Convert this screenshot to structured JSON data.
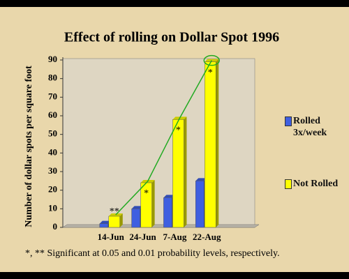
{
  "chart_data": {
    "type": "bar",
    "title": "Effect of rolling on Dollar Spot 1996",
    "y_label": "Number of  dollar spots  per square foot",
    "categories": [
      null,
      "14-Jun",
      "24-Jun",
      "7-Aug",
      "22-Aug",
      null
    ],
    "series": [
      {
        "name": "Rolled 3x/week",
        "color": "#3f5fe0",
        "values": [
          null,
          2,
          10,
          16,
          25,
          null
        ]
      },
      {
        "name": "Not Rolled",
        "color": "#ffff00",
        "values": [
          null,
          6,
          24,
          58,
          89,
          null
        ]
      }
    ],
    "significance": [
      null,
      "**",
      "*",
      "*",
      "*",
      null
    ],
    "footnote": "*, ** Significant at 0.05 and 0.01 probability levels, respectively.",
    "ylim": [
      0,
      90
    ],
    "yticks": [
      0,
      10,
      20,
      30,
      40,
      50,
      60,
      70,
      80,
      90
    ],
    "trend_color": "#22aa22"
  }
}
